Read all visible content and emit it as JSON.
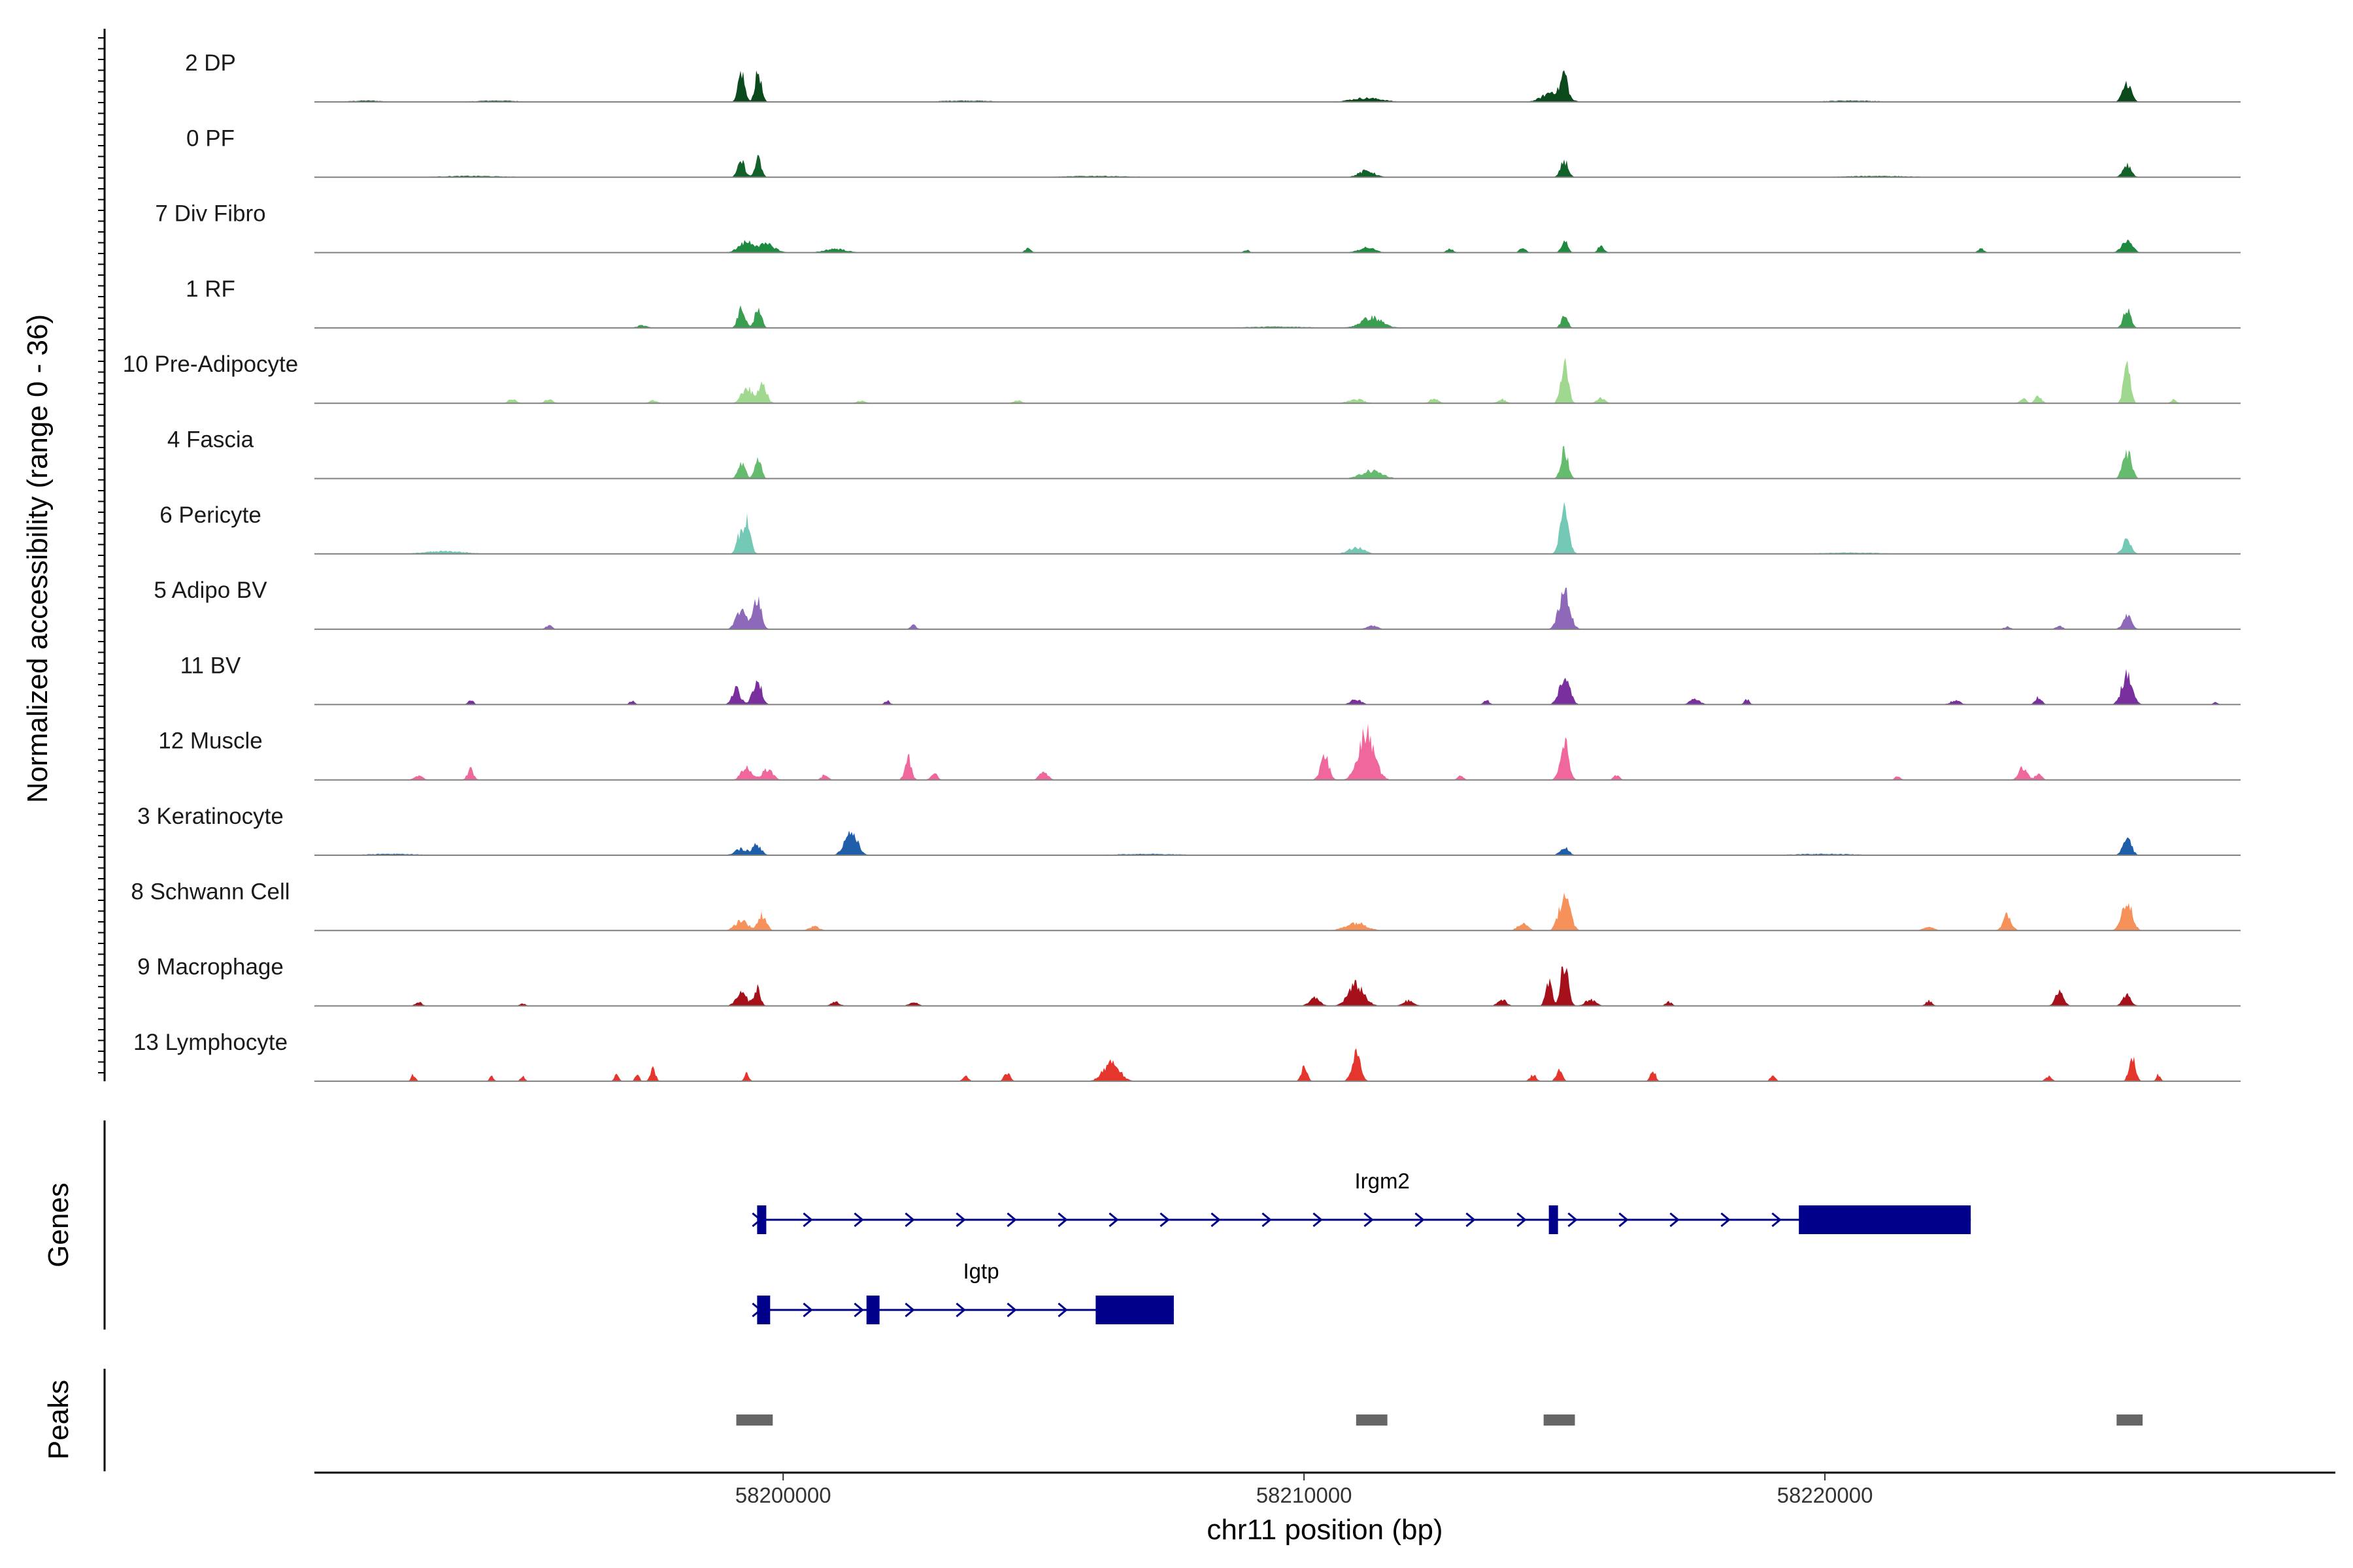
{
  "chart_data": {
    "type": "area",
    "title": "",
    "xlabel": "chr11 position (bp)",
    "ylabel": "Normalized accessibility (range 0 - 36)",
    "xlim": [
      58191000,
      58229800
    ],
    "ylim": [
      0,
      36
    ],
    "x_ticks": [
      58200000,
      58210000,
      58220000
    ],
    "x_tick_labels": [
      "58200000",
      "58210000",
      "58220000"
    ],
    "tracks": [
      {
        "label": "2 DP",
        "color": "#0b4a1c",
        "peaks": [
          [
            58199200,
            23,
            60
          ],
          [
            58199520,
            23,
            60
          ],
          [
            58211200,
            3,
            300
          ],
          [
            58214800,
            8,
            200
          ],
          [
            58215000,
            18,
            60
          ],
          [
            58225800,
            15,
            80
          ],
          [
            58192000,
            1,
            300
          ],
          [
            58194500,
            1,
            400
          ],
          [
            58203500,
            1,
            500
          ],
          [
            58220500,
            1,
            500
          ]
        ]
      },
      {
        "label": "0 PF",
        "color": "#12602a",
        "peaks": [
          [
            58199200,
            12,
            70
          ],
          [
            58199520,
            14,
            60
          ],
          [
            58211200,
            5,
            150
          ],
          [
            58215000,
            13,
            70
          ],
          [
            58225800,
            10,
            80
          ],
          [
            58194000,
            1,
            600
          ],
          [
            58206000,
            1,
            600
          ],
          [
            58221000,
            1,
            600
          ]
        ]
      },
      {
        "label": "7 Div Fibro",
        "color": "#1d8a40",
        "peaks": [
          [
            58199300,
            8,
            150
          ],
          [
            58199700,
            6,
            150
          ],
          [
            58201000,
            3,
            200
          ],
          [
            58204700,
            3,
            60
          ],
          [
            58208900,
            2,
            50
          ],
          [
            58211200,
            4,
            150
          ],
          [
            58212800,
            3,
            60
          ],
          [
            58214200,
            4,
            60
          ],
          [
            58215000,
            9,
            60
          ],
          [
            58215700,
            5,
            60
          ],
          [
            58223000,
            3,
            60
          ],
          [
            58225800,
            9,
            100
          ]
        ]
      },
      {
        "label": "1 RF",
        "color": "#3a9e51",
        "peaks": [
          [
            58199200,
            15,
            70
          ],
          [
            58199520,
            17,
            60
          ],
          [
            58211300,
            8,
            200
          ],
          [
            58215000,
            10,
            60
          ],
          [
            58225800,
            14,
            70
          ],
          [
            58197300,
            2,
            100
          ],
          [
            58209500,
            1,
            600
          ]
        ]
      },
      {
        "label": "10 Pre-Adipocyte",
        "color": "#a0d890",
        "peaks": [
          [
            58199300,
            12,
            100
          ],
          [
            58199600,
            15,
            80
          ],
          [
            58194800,
            3,
            80
          ],
          [
            58195500,
            3,
            80
          ],
          [
            58197500,
            2,
            80
          ],
          [
            58201500,
            2,
            80
          ],
          [
            58204500,
            2,
            80
          ],
          [
            58211000,
            3,
            150
          ],
          [
            58212500,
            4,
            80
          ],
          [
            58213800,
            3,
            80
          ],
          [
            58215000,
            30,
            70
          ],
          [
            58215700,
            4,
            80
          ],
          [
            58223800,
            4,
            60
          ],
          [
            58224100,
            6,
            60
          ],
          [
            58225800,
            35,
            60
          ],
          [
            58226700,
            3,
            50
          ]
        ]
      },
      {
        "label": "4 Fascia",
        "color": "#66bc6e",
        "peaks": [
          [
            58199200,
            12,
            70
          ],
          [
            58199520,
            15,
            60
          ],
          [
            58211300,
            6,
            200
          ],
          [
            58215000,
            22,
            70
          ],
          [
            58225800,
            21,
            80
          ]
        ]
      },
      {
        "label": "6 Pericyte",
        "color": "#74c8b6",
        "peaks": [
          [
            58199300,
            28,
            70
          ],
          [
            58199150,
            12,
            60
          ],
          [
            58211000,
            5,
            150
          ],
          [
            58215000,
            35,
            80
          ],
          [
            58225800,
            12,
            80
          ],
          [
            58193500,
            2,
            400
          ],
          [
            58220500,
            1,
            600
          ]
        ]
      },
      {
        "label": "5 Adipo BV",
        "color": "#8e69b9",
        "peaks": [
          [
            58199200,
            15,
            100
          ],
          [
            58199500,
            22,
            80
          ],
          [
            58215000,
            32,
            100
          ],
          [
            58211300,
            3,
            100
          ],
          [
            58225800,
            11,
            80
          ],
          [
            58195500,
            3,
            60
          ],
          [
            58202500,
            3,
            60
          ],
          [
            58224500,
            3,
            60
          ],
          [
            58223500,
            2,
            60
          ]
        ]
      },
      {
        "label": "11 BV",
        "color": "#7a2f9e",
        "peaks": [
          [
            58199100,
            12,
            80
          ],
          [
            58199500,
            20,
            80
          ],
          [
            58194000,
            4,
            50
          ],
          [
            58197100,
            3,
            50
          ],
          [
            58202000,
            3,
            50
          ],
          [
            58211000,
            4,
            100
          ],
          [
            58213500,
            4,
            50
          ],
          [
            58215000,
            20,
            100
          ],
          [
            58217500,
            4,
            100
          ],
          [
            58218500,
            4,
            50
          ],
          [
            58222500,
            3,
            100
          ],
          [
            58224100,
            6,
            60
          ],
          [
            58225800,
            22,
            100
          ],
          [
            58227500,
            2,
            50
          ]
        ]
      },
      {
        "label": "12 Muscle",
        "color": "#f0679d",
        "peaks": [
          [
            58199300,
            10,
            100
          ],
          [
            58199700,
            8,
            100
          ],
          [
            58193000,
            3,
            80
          ],
          [
            58194000,
            8,
            60
          ],
          [
            58200800,
            4,
            60
          ],
          [
            58202400,
            18,
            60
          ],
          [
            58202900,
            6,
            60
          ],
          [
            58205000,
            6,
            80
          ],
          [
            58210400,
            18,
            80
          ],
          [
            58211200,
            35,
            150
          ],
          [
            58213000,
            3,
            60
          ],
          [
            58215000,
            30,
            80
          ],
          [
            58216000,
            4,
            60
          ],
          [
            58221400,
            3,
            50
          ],
          [
            58223800,
            10,
            80
          ],
          [
            58224100,
            5,
            60
          ]
        ]
      },
      {
        "label": "3 Keratinocyte",
        "color": "#1f5ea8",
        "peaks": [
          [
            58199200,
            5,
            120
          ],
          [
            58199500,
            8,
            80
          ],
          [
            58201300,
            18,
            120
          ],
          [
            58215000,
            6,
            80
          ],
          [
            58225800,
            14,
            80
          ],
          [
            58192500,
            1,
            500
          ],
          [
            58207000,
            1,
            600
          ],
          [
            58220000,
            1,
            600
          ]
        ]
      },
      {
        "label": "8 Schwann Cell",
        "color": "#f6915a",
        "peaks": [
          [
            58199200,
            8,
            120
          ],
          [
            58199600,
            12,
            80
          ],
          [
            58200600,
            3,
            100
          ],
          [
            58211000,
            6,
            200
          ],
          [
            58215000,
            28,
            100
          ],
          [
            58214200,
            5,
            100
          ],
          [
            58222000,
            3,
            100
          ],
          [
            58223500,
            12,
            80
          ],
          [
            58225800,
            22,
            100
          ]
        ]
      },
      {
        "label": "9 Macrophage",
        "color": "#a5101a",
        "peaks": [
          [
            58199200,
            10,
            100
          ],
          [
            58199500,
            14,
            60
          ],
          [
            58193000,
            3,
            60
          ],
          [
            58195000,
            2,
            50
          ],
          [
            58201000,
            3,
            80
          ],
          [
            58202500,
            3,
            80
          ],
          [
            58210200,
            6,
            100
          ],
          [
            58211000,
            16,
            150
          ],
          [
            58212000,
            4,
            100
          ],
          [
            58213800,
            5,
            80
          ],
          [
            58215000,
            33,
            70
          ],
          [
            58214700,
            18,
            60
          ],
          [
            58215500,
            5,
            100
          ],
          [
            58217000,
            3,
            60
          ],
          [
            58222000,
            4,
            60
          ],
          [
            58224500,
            10,
            80
          ],
          [
            58225800,
            8,
            80
          ]
        ]
      },
      {
        "label": "13 Lymphocyte",
        "color": "#e5362d",
        "peaks": [
          [
            58192900,
            5,
            40
          ],
          [
            58194400,
            4,
            40
          ],
          [
            58195000,
            4,
            40
          ],
          [
            58196800,
            6,
            40
          ],
          [
            58197200,
            5,
            40
          ],
          [
            58197500,
            10,
            50
          ],
          [
            58199300,
            7,
            40
          ],
          [
            58203500,
            5,
            50
          ],
          [
            58204300,
            6,
            60
          ],
          [
            58206300,
            15,
            150
          ],
          [
            58210000,
            10,
            60
          ],
          [
            58211000,
            21,
            80
          ],
          [
            58214400,
            5,
            60
          ],
          [
            58214900,
            8,
            60
          ],
          [
            58216700,
            8,
            50
          ],
          [
            58219000,
            4,
            50
          ],
          [
            58224300,
            4,
            60
          ],
          [
            58225900,
            20,
            60
          ],
          [
            58226400,
            5,
            40
          ]
        ]
      }
    ],
    "genes": [
      {
        "name": "Irgm2",
        "strand": "+",
        "start": 58199500,
        "end": 58222800,
        "exons": [
          [
            58199500,
            58199650
          ],
          [
            58214700,
            58214800
          ],
          [
            58219500,
            58222800
          ]
        ],
        "row": 0
      },
      {
        "name": "Igtp",
        "strand": "+",
        "start": 58199500,
        "end": 58207500,
        "exons": [
          [
            58199500,
            58199750
          ],
          [
            58201600,
            58201850
          ],
          [
            58206000,
            58207500
          ]
        ],
        "row": 1
      }
    ],
    "peaks": [
      [
        58199100,
        58199800
      ],
      [
        58211000,
        58211600
      ],
      [
        58214600,
        58215200
      ],
      [
        58225600,
        58226100
      ]
    ],
    "panel_labels": {
      "genes": "Genes",
      "peaks": "Peaks"
    },
    "colors": {
      "gene": "#00008b",
      "peak": "#666666",
      "baseline": "#808080",
      "axis": "#000000"
    }
  }
}
